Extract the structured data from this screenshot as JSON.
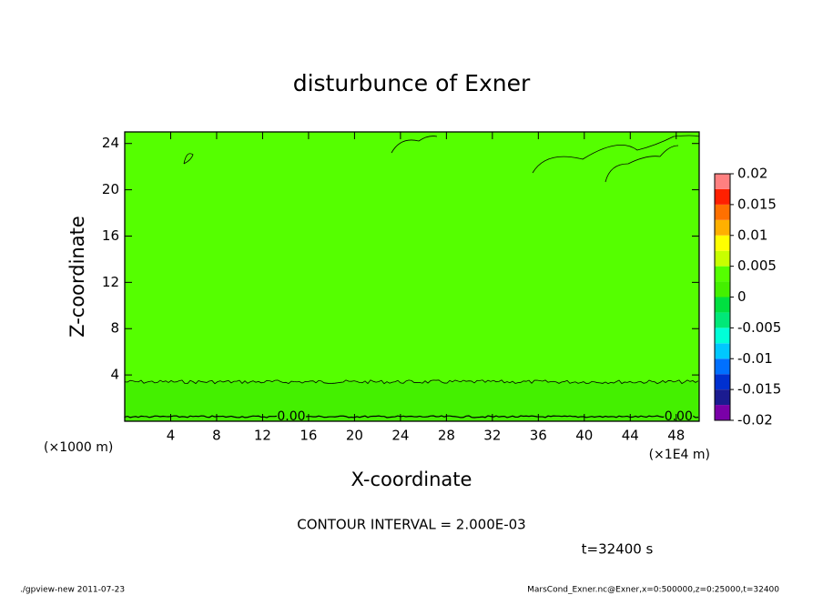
{
  "chart_data": {
    "type": "contour",
    "title": "disturbunce of Exner",
    "x_label": "X-coordinate",
    "y_label": "Z-coordinate",
    "x_unit": "(×1E4 m)",
    "y_unit": "(×1000 m)",
    "xlim": [
      0,
      50
    ],
    "xticks": [
      4,
      8,
      12,
      16,
      20,
      24,
      28,
      32,
      36,
      40,
      44,
      48
    ],
    "ylim": [
      0,
      25
    ],
    "yticks": [
      4,
      8,
      12,
      16,
      20,
      24
    ],
    "field_color": "#55ff00",
    "bottom_band": {
      "top": 3.4,
      "color": "#44f000"
    },
    "contour_label": "0.00",
    "colorbar": {
      "levels": [
        -0.02,
        -0.0175,
        -0.015,
        -0.0125,
        -0.01,
        -0.0075,
        -0.005,
        -0.0025,
        0,
        0.0025,
        0.005,
        0.0075,
        0.01,
        0.0125,
        0.015,
        0.0175,
        0.02
      ],
      "colors": [
        "#7a00a8",
        "#1b1b90",
        "#0030d0",
        "#0070ff",
        "#00c8ff",
        "#00ffd8",
        "#00e878",
        "#00e040",
        "#44f000",
        "#55ff00",
        "#c8ff00",
        "#ffff00",
        "#ffb000",
        "#ff7000",
        "#ff2000",
        "#ff8080"
      ],
      "ticks": [
        -0.02,
        -0.015,
        -0.01,
        -0.005,
        0,
        0.005,
        0.01,
        0.015,
        0.02
      ]
    },
    "contour_interval": "CONTOUR INTERVAL = 2.000E-03",
    "time_label": "t=32400 s",
    "footer_left": "./gpview-new  2011-07-23",
    "footer_right": "MarsCond_Exner.nc@Exner,x=0:500000,z=0:25000,t=32400"
  }
}
